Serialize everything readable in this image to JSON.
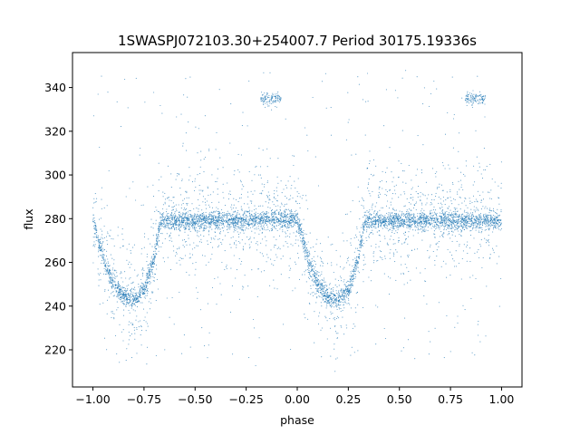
{
  "chart_data": {
    "type": "scatter",
    "title": "1SWASPJ072103.30+254007.7 Period 30175.19336s",
    "xlabel": "phase",
    "ylabel": "flux",
    "xlim": [
      -1.1,
      1.1
    ],
    "ylim": [
      203,
      356
    ],
    "xticks": [
      -1.0,
      -0.75,
      -0.5,
      -0.25,
      0.0,
      0.25,
      0.5,
      0.75,
      1.0
    ],
    "xtick_labels": [
      "−1.00",
      "−0.75",
      "−0.50",
      "−0.25",
      "0.00",
      "0.25",
      "0.50",
      "0.75",
      "1.00"
    ],
    "yticks": [
      220,
      240,
      260,
      280,
      300,
      320,
      340
    ],
    "ytick_labels": [
      "220",
      "240",
      "260",
      "280",
      "300",
      "320",
      "340"
    ],
    "grid": false,
    "color": "#1f77b4",
    "series": [
      {
        "description_points": [
          {
            "x": -1.0,
            "y": 279
          },
          {
            "x": -0.95,
            "y": 262
          },
          {
            "x": -0.9,
            "y": 250
          },
          {
            "x": -0.85,
            "y": 244
          },
          {
            "x": -0.8,
            "y": 243
          },
          {
            "x": -0.75,
            "y": 247
          },
          {
            "x": -0.7,
            "y": 262
          },
          {
            "x": -0.67,
            "y": 279
          },
          {
            "x": -0.5,
            "y": 279
          },
          {
            "x": 0.0,
            "y": 280
          },
          {
            "x": 0.05,
            "y": 262
          },
          {
            "x": 0.1,
            "y": 250
          },
          {
            "x": 0.15,
            "y": 244
          },
          {
            "x": 0.2,
            "y": 243
          },
          {
            "x": 0.25,
            "y": 247
          },
          {
            "x": 0.3,
            "y": 262
          },
          {
            "x": 0.33,
            "y": 279
          },
          {
            "x": 0.5,
            "y": 279
          },
          {
            "x": 1.0,
            "y": 279
          }
        ],
        "eclipse_centers": [
          -0.8,
          0.2
        ],
        "baseline": 279,
        "eclipse_depth_min": 243,
        "secondary_clumps": [
          {
            "x_range": [
              -0.18,
              -0.08
            ],
            "y": 335
          },
          {
            "x_range": [
              0.82,
              0.92
            ],
            "y": 335
          }
        ]
      }
    ]
  }
}
